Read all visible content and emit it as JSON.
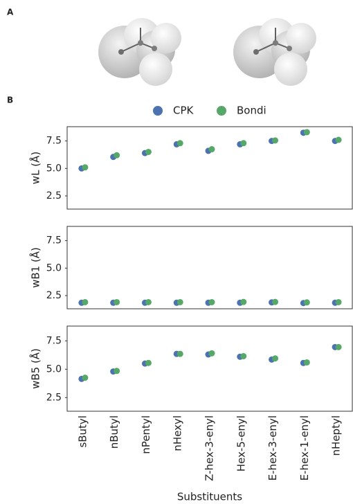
{
  "panel_labels": [
    "A",
    "B"
  ],
  "chart_data": [
    {
      "type": "scatter",
      "ylabel": "wL (Å)",
      "ylim": [
        1.3,
        8.8
      ],
      "yticks": [
        2.5,
        {
          "value": 5,
          "label": "5.0"
        },
        7.5
      ],
      "legend": "top",
      "series": [
        {
          "name": "CPK",
          "color": "#4c72b0",
          "values": [
            5.0,
            6.05,
            6.4,
            7.2,
            6.6,
            7.2,
            7.5,
            8.25,
            7.5
          ]
        },
        {
          "name": "Bondi",
          "color": "#55a868",
          "values": [
            5.1,
            6.2,
            6.5,
            7.3,
            6.75,
            7.3,
            7.55,
            8.3,
            7.6
          ]
        }
      ]
    },
    {
      "type": "scatter",
      "ylabel": "wB1 (Å)",
      "ylim": [
        1.3,
        8.8
      ],
      "yticks": [
        2.5,
        {
          "value": 5,
          "label": "5.0"
        },
        7.5
      ],
      "series": [
        {
          "color": "#4c72b0",
          "values": [
            1.85,
            1.85,
            1.85,
            1.85,
            1.85,
            1.85,
            1.88,
            1.82,
            1.85
          ]
        },
        {
          "color": "#55a868",
          "values": [
            1.9,
            1.9,
            1.9,
            1.9,
            1.9,
            1.92,
            1.92,
            1.88,
            1.9
          ]
        }
      ]
    },
    {
      "type": "scatter",
      "ylabel": "wB5 (Å)",
      "xlabel": "Substituents",
      "ylim": [
        1.3,
        8.8
      ],
      "yticks": [
        2.5,
        {
          "value": 5,
          "label": "5.0"
        },
        7.5
      ],
      "categories": [
        "sButyl",
        "nButyl",
        "nPentyl",
        "nHexyl",
        "Z-hex-3-enyl",
        "Hex-5-enyl",
        "E-hex-3-enyl",
        "E-hex-1-enyl",
        "nHeptyl"
      ],
      "series": [
        {
          "color": "#4c72b0",
          "values": [
            4.15,
            4.8,
            5.5,
            6.35,
            6.3,
            6.1,
            5.85,
            5.55,
            6.95
          ]
        },
        {
          "color": "#55a868",
          "values": [
            4.25,
            4.85,
            5.55,
            6.35,
            6.4,
            6.15,
            5.95,
            5.6,
            6.95
          ]
        }
      ]
    }
  ]
}
